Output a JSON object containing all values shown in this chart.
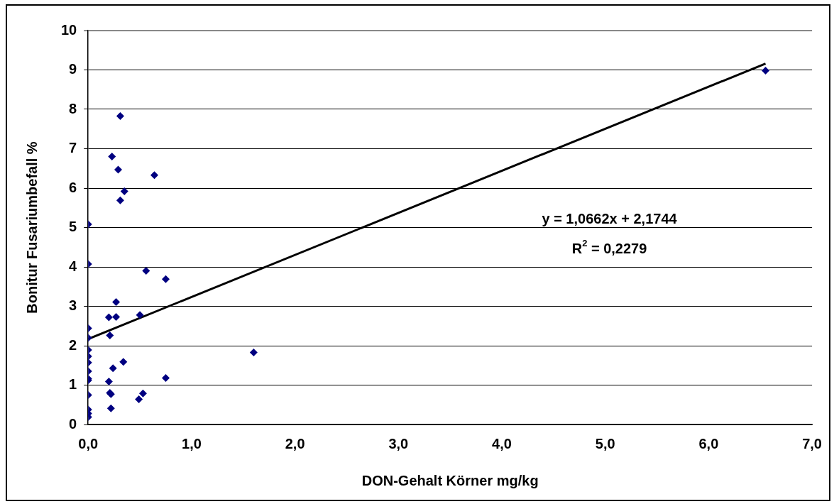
{
  "chart_data": {
    "type": "scatter",
    "xlabel": "DON-Gehalt Körner mg/kg",
    "ylabel": "Bonitur Fusariumbefall %",
    "xlim": [
      0,
      7
    ],
    "xticks": [
      {
        "value": 0,
        "label": "0,0"
      },
      {
        "value": 1,
        "label": "1,0"
      },
      {
        "value": 2,
        "label": "2,0"
      },
      {
        "value": 3,
        "label": "3,0"
      },
      {
        "value": 4,
        "label": "4,0"
      },
      {
        "value": 5,
        "label": "5,0"
      },
      {
        "value": 6,
        "label": "6,0"
      },
      {
        "value": 7,
        "label": "7,0"
      }
    ],
    "ylim": [
      0,
      10
    ],
    "yticks": [
      0,
      1,
      2,
      3,
      4,
      5,
      6,
      7,
      8,
      9,
      10
    ],
    "grid": "y",
    "legend": false,
    "marker": "diamond",
    "annotations": [
      "y = 1,0662x + 2,1744",
      "R$^{2}$ = 0,2279"
    ],
    "series": [
      {
        "type": "scatter",
        "color": "#000080",
        "x": [
          0.31,
          0.23,
          0.29,
          0.64,
          0.35,
          0.31,
          0,
          0,
          0.56,
          0.75,
          0.27,
          0.2,
          0.27,
          0.5,
          0,
          0,
          0.21,
          0,
          0,
          0,
          0,
          0,
          0,
          0.34,
          0.24,
          0.75,
          0.2,
          0.21,
          0.22,
          0,
          0.53,
          0.49,
          0.22,
          0,
          0,
          0,
          1.6,
          6.55
        ],
        "values": [
          7.83,
          6.8,
          6.47,
          6.33,
          5.92,
          5.69,
          5.08,
          4.07,
          3.9,
          3.69,
          3.11,
          2.72,
          2.73,
          2.78,
          2.44,
          2.2,
          2.26,
          1.89,
          1.73,
          1.57,
          1.35,
          1.16,
          1.12,
          1.59,
          1.43,
          1.18,
          1.09,
          0.8,
          0.77,
          0.75,
          0.79,
          0.64,
          0.41,
          0.38,
          0.28,
          0.19,
          1.83,
          8.98
        ]
      },
      {
        "type": "line",
        "color": "#000000",
        "x": [
          0,
          6.55
        ],
        "values": [
          2.17,
          9.16
        ],
        "marker": "none"
      }
    ]
  }
}
